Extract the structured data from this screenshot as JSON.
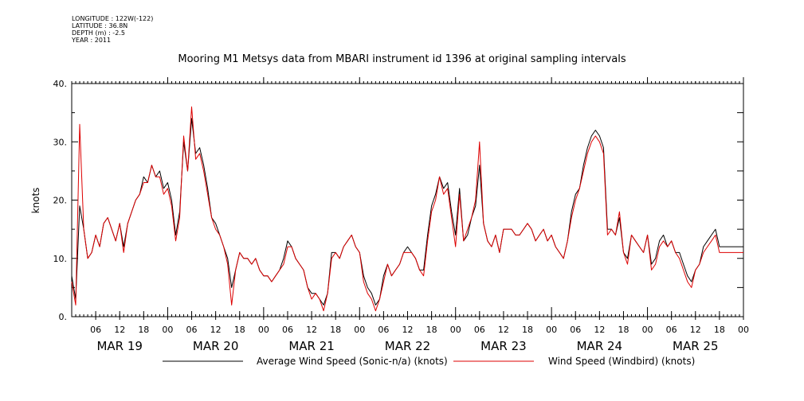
{
  "header": {
    "longitude": "LONGITUDE : 122W(-122)",
    "latitude": "LATITUDE : 36.8N",
    "depth": "DEPTH (m) : -2.5",
    "year": "YEAR : 2011"
  },
  "chart_data": {
    "type": "line",
    "title": "Mooring M1 Metsys data from MBARI instrument id 1396 at original sampling intervals",
    "ylabel": "knots",
    "ylim": [
      0,
      40
    ],
    "yticks": [
      "0.",
      "10.",
      "20.",
      "30.",
      "40."
    ],
    "xlim_hours": [
      0,
      168
    ],
    "hour_ticks": [
      "06",
      "12",
      "18",
      "00",
      "06",
      "12",
      "18",
      "00",
      "06",
      "12",
      "18",
      "00",
      "06",
      "12",
      "18",
      "00",
      "06",
      "12",
      "18",
      "00",
      "06",
      "12",
      "18",
      "00",
      "06",
      "12",
      "18",
      "00"
    ],
    "day_labels": [
      "MAR 19",
      "MAR 20",
      "MAR 21",
      "MAR 22",
      "MAR 23",
      "MAR 24",
      "MAR 25"
    ],
    "x_hours": [
      0,
      1,
      2,
      3,
      4,
      5,
      6,
      7,
      8,
      9,
      10,
      11,
      12,
      13,
      14,
      15,
      16,
      17,
      18,
      19,
      20,
      21,
      22,
      23,
      24,
      25,
      26,
      27,
      28,
      29,
      30,
      31,
      32,
      33,
      34,
      35,
      36,
      37,
      38,
      39,
      40,
      41,
      42,
      43,
      44,
      45,
      46,
      47,
      48,
      49,
      50,
      51,
      52,
      53,
      54,
      55,
      56,
      57,
      58,
      59,
      60,
      61,
      62,
      63,
      64,
      65,
      66,
      67,
      68,
      69,
      70,
      71,
      72,
      73,
      74,
      75,
      76,
      77,
      78,
      79,
      80,
      81,
      82,
      83,
      84,
      85,
      86,
      87,
      88,
      89,
      90,
      91,
      92,
      93,
      94,
      95,
      96,
      97,
      98,
      99,
      100,
      101,
      102,
      103,
      104,
      105,
      106,
      107,
      108,
      109,
      110,
      111,
      112,
      113,
      114,
      115,
      116,
      117,
      118,
      119,
      120,
      121,
      122,
      123,
      124,
      125,
      126,
      127,
      128,
      129,
      130,
      131,
      132,
      133,
      134,
      135,
      136,
      137,
      138,
      139,
      140,
      141,
      142,
      143,
      144,
      145,
      146,
      147,
      148,
      149,
      150,
      151,
      152,
      153,
      154,
      155,
      156,
      157,
      158,
      159,
      160,
      161,
      162,
      163,
      164,
      165,
      166,
      167,
      168
    ],
    "series": [
      {
        "name": "Average Wind Speed (Sonic-n/a) (knots)",
        "color": "#000000",
        "values": [
          7,
          3,
          19,
          15,
          10,
          11,
          14,
          12,
          16,
          17,
          15,
          13,
          16,
          12,
          16,
          18,
          20,
          21,
          24,
          23,
          26,
          24,
          25,
          22,
          23,
          20,
          14,
          18,
          30,
          25,
          34,
          28,
          29,
          26,
          22,
          17,
          16,
          14,
          12,
          10,
          5,
          8,
          11,
          10,
          10,
          9,
          10,
          8,
          7,
          7,
          6,
          7,
          8,
          10,
          13,
          12,
          10,
          9,
          8,
          5,
          4,
          4,
          3,
          2,
          4,
          11,
          11,
          10,
          12,
          13,
          14,
          12,
          11,
          7,
          5,
          4,
          2,
          3,
          7,
          9,
          7,
          8,
          9,
          11,
          12,
          11,
          10,
          8,
          8,
          14,
          19,
          21,
          24,
          22,
          23,
          18,
          14,
          22,
          13,
          14,
          17,
          19,
          26,
          16,
          13,
          12,
          14,
          11,
          15,
          15,
          15,
          14,
          14,
          15,
          16,
          15,
          13,
          14,
          15,
          13,
          14,
          12,
          11,
          10,
          13,
          18,
          21,
          22,
          26,
          29,
          31,
          32,
          31,
          29,
          15,
          15,
          14,
          17,
          11,
          10,
          14,
          13,
          12,
          11,
          14,
          9,
          10,
          13,
          14,
          12,
          13,
          11,
          11,
          9,
          7,
          6,
          8,
          9,
          12,
          13,
          14,
          15,
          12,
          12,
          12,
          12,
          12,
          12,
          12
        ]
      },
      {
        "name": "Wind Speed (Windbird) (knots)",
        "color": "#dd0000",
        "values": [
          6,
          2,
          33,
          15,
          10,
          11,
          14,
          12,
          16,
          17,
          15,
          13,
          16,
          11,
          16,
          18,
          20,
          21,
          23,
          23,
          26,
          24,
          24,
          21,
          22,
          19,
          13,
          17,
          31,
          25,
          36,
          27,
          28,
          25,
          21,
          17,
          15,
          14,
          12,
          9,
          2,
          8,
          11,
          10,
          10,
          9,
          10,
          8,
          7,
          7,
          6,
          7,
          8,
          9,
          12,
          12,
          10,
          9,
          8,
          5,
          3,
          4,
          3,
          1,
          4,
          10,
          11,
          10,
          12,
          13,
          14,
          12,
          11,
          6,
          4,
          3,
          1,
          3,
          6,
          9,
          7,
          8,
          9,
          11,
          11,
          11,
          10,
          8,
          7,
          13,
          18,
          20,
          24,
          21,
          22,
          17,
          12,
          21,
          13,
          15,
          17,
          20,
          30,
          16,
          13,
          12,
          14,
          11,
          15,
          15,
          15,
          14,
          14,
          15,
          16,
          15,
          13,
          14,
          15,
          13,
          14,
          12,
          11,
          10,
          13,
          17,
          20,
          22,
          25,
          28,
          30,
          31,
          30,
          28,
          14,
          15,
          14,
          18,
          11,
          9,
          14,
          13,
          12,
          11,
          14,
          8,
          9,
          12,
          13,
          12,
          13,
          11,
          10,
          8,
          6,
          5,
          8,
          9,
          11,
          12,
          13,
          14,
          11,
          11,
          11,
          11,
          11,
          11,
          11
        ]
      }
    ]
  }
}
